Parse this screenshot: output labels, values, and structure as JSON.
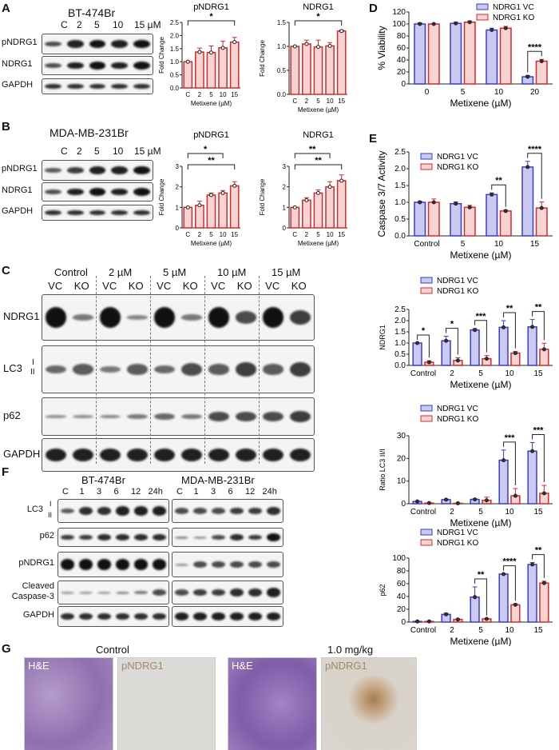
{
  "panel_letters": {
    "a": "A",
    "b": "B",
    "c": "C",
    "d": "D",
    "e": "E",
    "f": "F",
    "g": "G"
  },
  "panel_a": {
    "cell_line": "BT-474Br",
    "lanes": [
      "C",
      "2",
      "5",
      "10",
      "15 µM"
    ],
    "rows": [
      "pNDRG1",
      "NDRG1",
      "GAPDH"
    ]
  },
  "panel_b": {
    "cell_line": "MDA-MB-231Br",
    "lanes": [
      "C",
      "2",
      "5",
      "10",
      "15 µM"
    ],
    "rows": [
      "pNDRG1",
      "NDRG1",
      "GAPDH"
    ]
  },
  "panel_c": {
    "conditions": [
      "Control",
      "2 µM",
      "5 µM",
      "10 µM",
      "15 µM"
    ],
    "lanes": [
      "VC",
      "KO",
      "VC",
      "KO",
      "VC",
      "KO",
      "VC",
      "KO",
      "VC",
      "KO"
    ],
    "rows": [
      "NDRG1",
      "LC3",
      "p62",
      "GAPDH"
    ],
    "lc3_forms": [
      "I",
      "II"
    ]
  },
  "panel_f": {
    "cell_lines": [
      "BT-474Br",
      "MDA-MB-231Br"
    ],
    "lanes": [
      "C",
      "1",
      "3",
      "6",
      "12",
      "24h"
    ],
    "rows": [
      "LC3",
      "p62",
      "pNDRG1",
      "Cleaved Caspase-3",
      "GAPDH"
    ],
    "lc3_forms": [
      "I",
      "II"
    ]
  },
  "panel_g": {
    "groups": [
      "Control",
      "1.0 mg/kg"
    ],
    "stains": [
      "H&E",
      "pNDRG1",
      "H&E",
      "pNDRG1"
    ]
  },
  "colors": {
    "vc": "#3b3bc4",
    "vc_fill": "#c9c9f2",
    "ko": "#d42a2a",
    "ko_fill": "#f6d4d4"
  },
  "chart_data": [
    {
      "id": "a1",
      "type": "bar",
      "title": "pNDRG1",
      "xlabel": "Metixene (µM)",
      "ylabel": "Fold Change",
      "ylim": [
        0,
        2.5
      ],
      "yticks": [
        "0.0",
        "0.5",
        "1.0",
        "1.5",
        "2.0",
        "2.5"
      ],
      "categories": [
        "C",
        "2",
        "5",
        "10",
        "15"
      ],
      "series": [
        {
          "values": [
            1.0,
            1.37,
            1.35,
            1.53,
            1.75
          ],
          "errors": [
            0,
            0.15,
            0.25,
            0.25,
            0.18
          ]
        }
      ],
      "significance": [
        {
          "from": 0,
          "to": 4,
          "label": "*"
        }
      ]
    },
    {
      "id": "a2",
      "type": "bar",
      "title": "NDRG1",
      "xlabel": "Metixene (µM)",
      "ylabel": "Fold Change",
      "ylim": [
        0,
        1.5
      ],
      "yticks": [
        "0.0",
        "0.5",
        "1.0",
        "1.5"
      ],
      "categories": [
        "C",
        "2",
        "5",
        "10",
        "15"
      ],
      "series": [
        {
          "values": [
            1.0,
            1.05,
            0.99,
            1.01,
            1.32
          ],
          "errors": [
            0,
            0.08,
            0.14,
            0.07,
            0.02
          ]
        }
      ],
      "significance": [
        {
          "from": 0,
          "to": 4,
          "label": "*"
        }
      ]
    },
    {
      "id": "b1",
      "type": "bar",
      "title": "pNDRG1",
      "xlabel": "Metixene (µM)",
      "ylabel": "Fold Change",
      "ylim": [
        0,
        3
      ],
      "yticks": [
        "0",
        "1",
        "2",
        "3"
      ],
      "categories": [
        "C",
        "2",
        "5",
        "10",
        "15"
      ],
      "series": [
        {
          "values": [
            1.0,
            1.1,
            1.6,
            1.7,
            2.05
          ],
          "errors": [
            0,
            0.2,
            0.1,
            0.12,
            0.2
          ]
        }
      ],
      "significance": [
        {
          "from": 0,
          "to": 3,
          "label": "*"
        },
        {
          "from": 0,
          "to": 4,
          "label": "**"
        }
      ]
    },
    {
      "id": "b2",
      "type": "bar",
      "title": "NDRG1",
      "xlabel": "Metixene (µM)",
      "ylabel": "Fold Change",
      "ylim": [
        0,
        3
      ],
      "yticks": [
        "0",
        "1",
        "2",
        "3"
      ],
      "categories": [
        "C",
        "2",
        "5",
        "10",
        "15"
      ],
      "series": [
        {
          "values": [
            1.0,
            1.35,
            1.7,
            2.0,
            2.3
          ],
          "errors": [
            0,
            0.12,
            0.15,
            0.25,
            0.28
          ]
        }
      ],
      "significance": [
        {
          "from": 0,
          "to": 3,
          "label": "**"
        },
        {
          "from": 0,
          "to": 4,
          "label": "**"
        }
      ]
    },
    {
      "id": "d",
      "type": "bar",
      "xlabel": "Metixene (µM)",
      "ylabel": "% Viability",
      "ylim": [
        0,
        120
      ],
      "yticks": [
        "0",
        "20",
        "40",
        "60",
        "80",
        "100",
        "120"
      ],
      "categories": [
        "0",
        "5",
        "10",
        "20"
      ],
      "legend": "top-right",
      "series": [
        {
          "name": "NDRG1 VC",
          "values": [
            100,
            101,
            90,
            12
          ],
          "errors": [
            2,
            2,
            3,
            2
          ]
        },
        {
          "name": "NDRG1 KO",
          "values": [
            100,
            103,
            93,
            38
          ],
          "errors": [
            1,
            2,
            3,
            3
          ]
        }
      ],
      "significance": [
        {
          "category": 3,
          "label": "****"
        }
      ]
    },
    {
      "id": "e",
      "type": "bar",
      "xlabel": "Metixene (µM)",
      "ylabel": "Caspase 3/7 Activity",
      "ylim": [
        0,
        2.5
      ],
      "yticks": [
        "0.0",
        "0.5",
        "1.0",
        "1.5",
        "2.0",
        "2.5"
      ],
      "categories": [
        "Control",
        "5",
        "10",
        "15"
      ],
      "legend": "top-left",
      "series": [
        {
          "name": "NDRG1 VC",
          "values": [
            1.0,
            0.96,
            1.23,
            2.05
          ],
          "errors": [
            0.03,
            0.05,
            0.05,
            0.17
          ]
        },
        {
          "name": "NDRG1 KO",
          "values": [
            1.0,
            0.85,
            0.74,
            0.83
          ],
          "errors": [
            0.1,
            0.06,
            0.03,
            0.18
          ]
        }
      ],
      "significance": [
        {
          "category": 2,
          "label": "**"
        },
        {
          "category": 3,
          "label": "****"
        }
      ]
    },
    {
      "id": "c1",
      "type": "bar",
      "xlabel": "Metixene (µM)",
      "ylabel": "NDRG1",
      "ylim": [
        0,
        2.5
      ],
      "yticks": [
        "0.0",
        "0.5",
        "1.0",
        "1.5",
        "2.0",
        "2.5"
      ],
      "categories": [
        "Control",
        "2",
        "5",
        "10",
        "15"
      ],
      "legend": "top-left",
      "series": [
        {
          "name": "NDRG1 VC",
          "values": [
            1.0,
            1.1,
            1.58,
            1.7,
            1.72
          ],
          "errors": [
            0,
            0.2,
            0.07,
            0.3,
            0.33
          ]
        },
        {
          "name": "NDRG1 KO",
          "values": [
            0.14,
            0.22,
            0.3,
            0.55,
            0.72
          ],
          "errors": [
            0.07,
            0.12,
            0.14,
            0.07,
            0.27
          ]
        }
      ],
      "significance": [
        {
          "category": 0,
          "label": "*"
        },
        {
          "category": 1,
          "label": "*"
        },
        {
          "category": 2,
          "label": "***"
        },
        {
          "category": 3,
          "label": "**"
        },
        {
          "category": 4,
          "label": "**"
        }
      ]
    },
    {
      "id": "c2",
      "type": "bar",
      "xlabel": "Metixene (µM)",
      "ylabel": "Ratio LC3 II/I",
      "ylim": [
        0,
        30
      ],
      "yticks": [
        "0",
        "10",
        "20",
        "30"
      ],
      "categories": [
        "Control",
        "2",
        "5",
        "10",
        "15"
      ],
      "legend": "top-left",
      "series": [
        {
          "name": "NDRG1 VC",
          "values": [
            1.0,
            1.8,
            1.9,
            19.2,
            23.2
          ],
          "errors": [
            0.1,
            0.2,
            0.3,
            4.5,
            3.8
          ]
        },
        {
          "name": "NDRG1 KO",
          "values": [
            0.3,
            0.2,
            1.5,
            3.5,
            4.6
          ],
          "errors": [
            0.1,
            0.1,
            1.4,
            3.2,
            3.5
          ]
        }
      ],
      "significance": [
        {
          "category": 3,
          "label": "***"
        },
        {
          "category": 4,
          "label": "***"
        }
      ]
    },
    {
      "id": "c3",
      "type": "bar",
      "xlabel": "Metixene (µM)",
      "ylabel": "p62",
      "ylim": [
        0,
        100
      ],
      "yticks": [
        "0",
        "20",
        "40",
        "60",
        "80",
        "100"
      ],
      "categories": [
        "Control",
        "2",
        "5",
        "10",
        "15"
      ],
      "legend": "top-left",
      "series": [
        {
          "name": "NDRG1 VC",
          "values": [
            1,
            12,
            39,
            75,
            90
          ],
          "errors": [
            0.3,
            2,
            16,
            0.5,
            3
          ]
        },
        {
          "name": "NDRG1 KO",
          "values": [
            1,
            4,
            5,
            27,
            61
          ],
          "errors": [
            0.3,
            1,
            0.5,
            1.5,
            3
          ]
        }
      ],
      "significance": [
        {
          "category": 2,
          "label": "**"
        },
        {
          "category": 3,
          "label": "****"
        },
        {
          "category": 4,
          "label": "**"
        }
      ]
    }
  ]
}
